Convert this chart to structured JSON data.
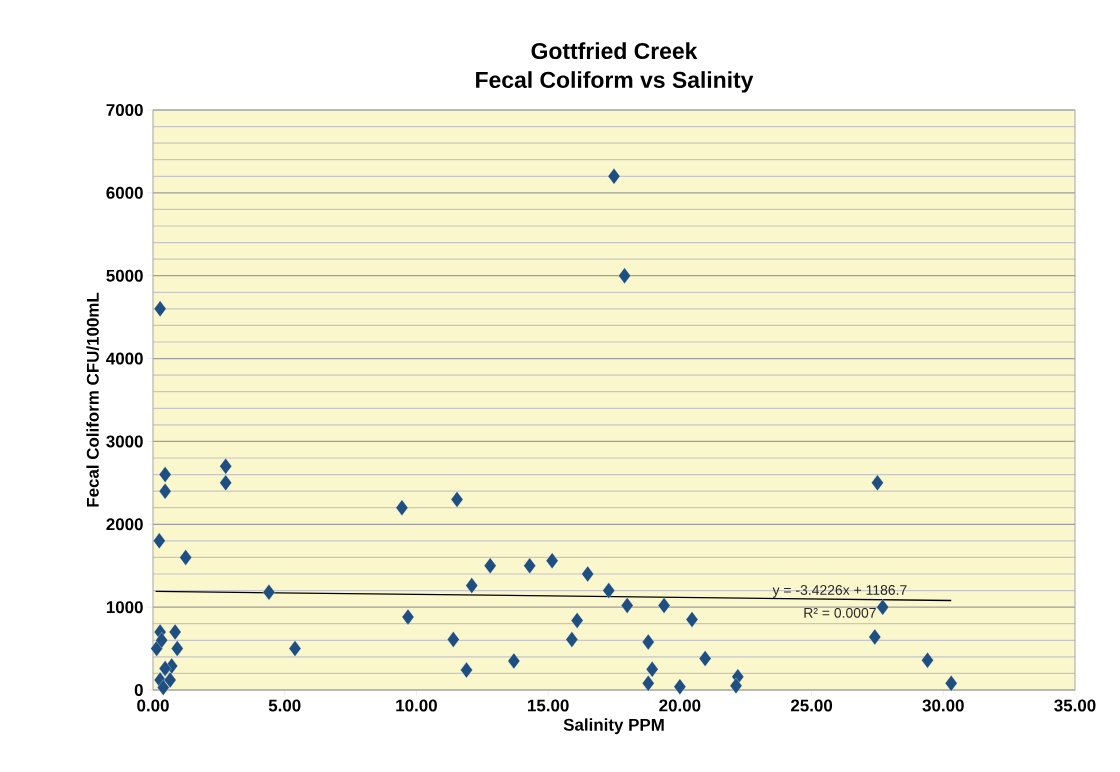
{
  "chart_data": {
    "type": "scatter",
    "title": "Gottfried Creek",
    "subtitle": "Fecal Coliform vs Salinity",
    "xlabel": "Salinity PPM",
    "ylabel": "Fecal Coliform CFU/100mL",
    "xlim": [
      0,
      35
    ],
    "ylim": [
      0,
      7000
    ],
    "xticks": [
      {
        "value": 0,
        "label": "0.00"
      },
      {
        "value": 5,
        "label": "5.00"
      },
      {
        "value": 10,
        "label": "10.00"
      },
      {
        "value": 15,
        "label": "15.00"
      },
      {
        "value": 20,
        "label": "20.00"
      },
      {
        "value": 25,
        "label": "25.00"
      },
      {
        "value": 30,
        "label": "30.00"
      },
      {
        "value": 35,
        "label": "35.00"
      }
    ],
    "yticks": [
      0,
      1000,
      2000,
      3000,
      4000,
      5000,
      6000,
      7000
    ],
    "grid": "y",
    "marker": "diamond",
    "series": [
      {
        "color": "#1f4e80",
        "x": [
          0.27,
          17.5,
          17.9,
          0.24,
          0.46,
          0.46,
          2.76,
          2.76,
          1.24,
          4.4,
          5.39,
          0.27,
          0.84,
          0.14,
          0.92,
          0.33,
          0.71,
          0.46,
          0.27,
          0.65,
          0.39,
          9.45,
          11.54,
          9.68,
          11.4,
          11.9,
          12.1,
          12.8,
          13.7,
          14.3,
          15.15,
          15.9,
          16.1,
          16.5,
          17.3,
          18.0,
          19.4,
          18.8,
          18.95,
          18.8,
          20.0,
          20.46,
          20.96,
          22.2,
          22.13,
          27.4,
          27.5,
          27.7,
          29.4,
          30.3
        ],
        "values": [
          4600,
          6200,
          5000,
          1800,
          2600,
          2400,
          2700,
          2500,
          1600,
          1180,
          500,
          700,
          700,
          500,
          500,
          600,
          290,
          260,
          120,
          120,
          30,
          2200,
          2300,
          880,
          610,
          240,
          1260,
          1500,
          350,
          1500,
          1560,
          610,
          840,
          1400,
          1200,
          1020,
          1020,
          580,
          250,
          80,
          40,
          850,
          380,
          160,
          50,
          640,
          2500,
          1000,
          360,
          80
        ]
      },
      {
        "type": "line",
        "color": "#000000",
        "marker": "none",
        "x": [
          0.1,
          30.3
        ],
        "values": [
          1190,
          1080
        ]
      }
    ],
    "annotations": [
      "y = -3.4226x + 1186.7",
      "R² = 0.0007"
    ]
  }
}
